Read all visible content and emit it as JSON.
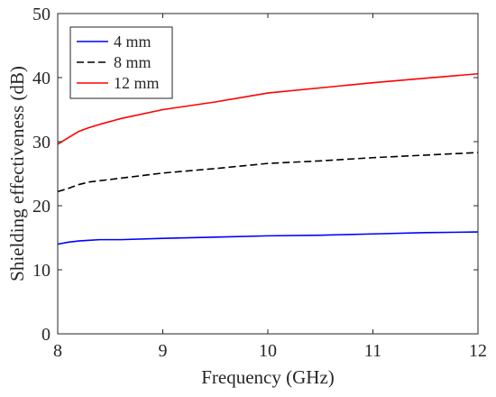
{
  "chart_data": {
    "type": "line",
    "title": "",
    "xlabel": "Frequency (GHz)",
    "ylabel": "Shielding effectiveness (dB)",
    "xlim": [
      8,
      12
    ],
    "ylim": [
      0,
      50
    ],
    "xticks": [
      "8",
      "9",
      "10",
      "11",
      "12"
    ],
    "yticks": [
      "0",
      "10",
      "20",
      "30",
      "40",
      "50"
    ],
    "grid": false,
    "legend_position": "top-left",
    "series": [
      {
        "name": "4 mm",
        "color": "#0000ff",
        "dash": "solid",
        "x": [
          8.0,
          8.1,
          8.2,
          8.3,
          8.4,
          8.6,
          9.0,
          9.5,
          10.0,
          10.5,
          11.0,
          11.5,
          12.0
        ],
        "y": [
          14.0,
          14.3,
          14.5,
          14.6,
          14.7,
          14.7,
          14.9,
          15.1,
          15.3,
          15.4,
          15.6,
          15.8,
          15.9
        ]
      },
      {
        "name": "8 mm",
        "color": "#000000",
        "dash": "dashed",
        "x": [
          8.0,
          8.1,
          8.2,
          8.3,
          8.4,
          8.6,
          9.0,
          9.5,
          10.0,
          10.5,
          11.0,
          11.5,
          12.0
        ],
        "y": [
          22.2,
          22.7,
          23.3,
          23.7,
          23.9,
          24.3,
          25.1,
          25.8,
          26.6,
          27.0,
          27.5,
          27.9,
          28.3
        ]
      },
      {
        "name": "12 mm",
        "color": "#ff0000",
        "dash": "solid",
        "x": [
          8.0,
          8.1,
          8.2,
          8.3,
          8.4,
          8.6,
          9.0,
          9.5,
          10.0,
          10.5,
          11.0,
          11.5,
          12.0
        ],
        "y": [
          29.6,
          30.6,
          31.6,
          32.2,
          32.7,
          33.6,
          35.0,
          36.2,
          37.6,
          38.4,
          39.2,
          39.9,
          40.6
        ]
      }
    ]
  }
}
